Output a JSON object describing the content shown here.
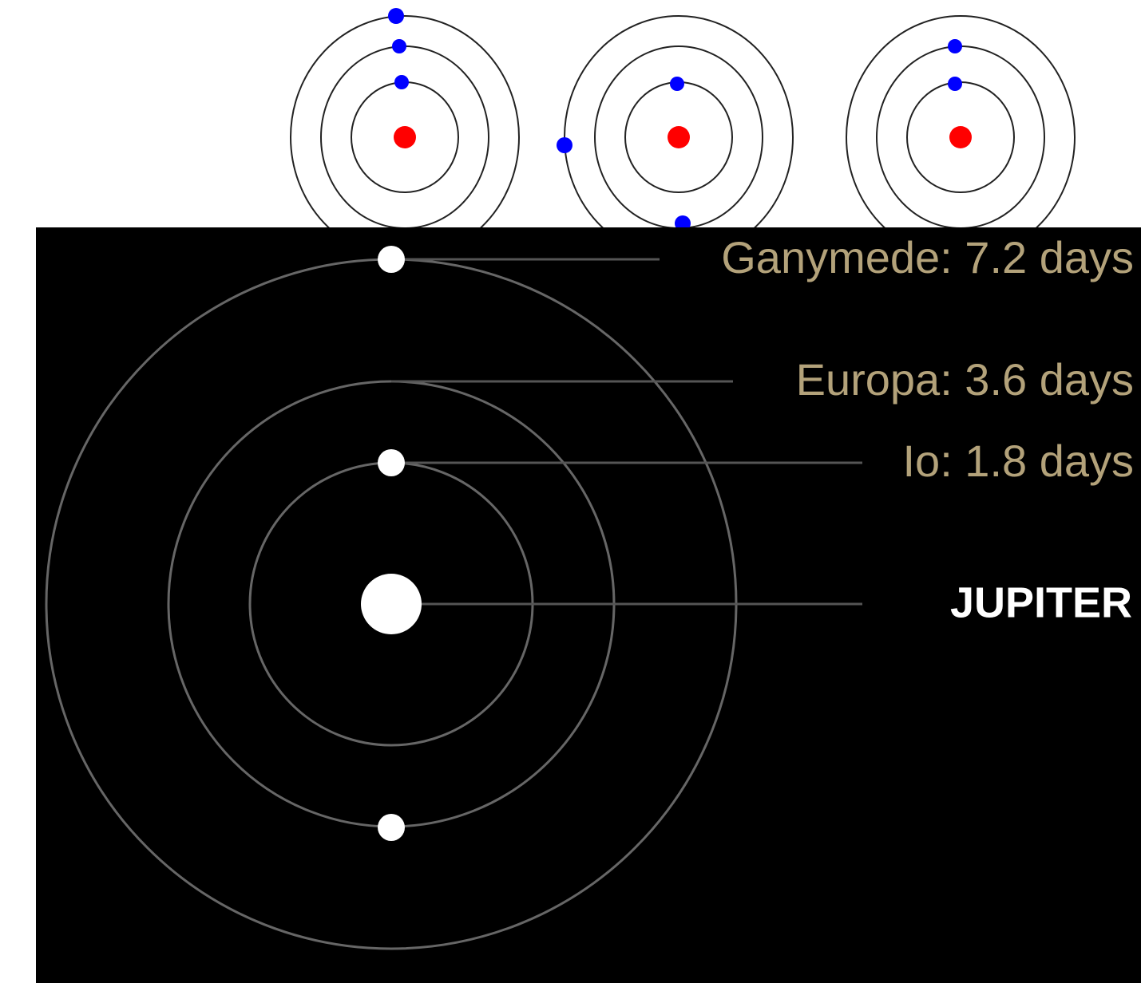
{
  "labels": {
    "ganymede": "Ganymede: 7.2 days",
    "europa": "Europa: 3.6 days",
    "io": "Io: 1.8 days",
    "jupiter": "JUPITER"
  }
}
